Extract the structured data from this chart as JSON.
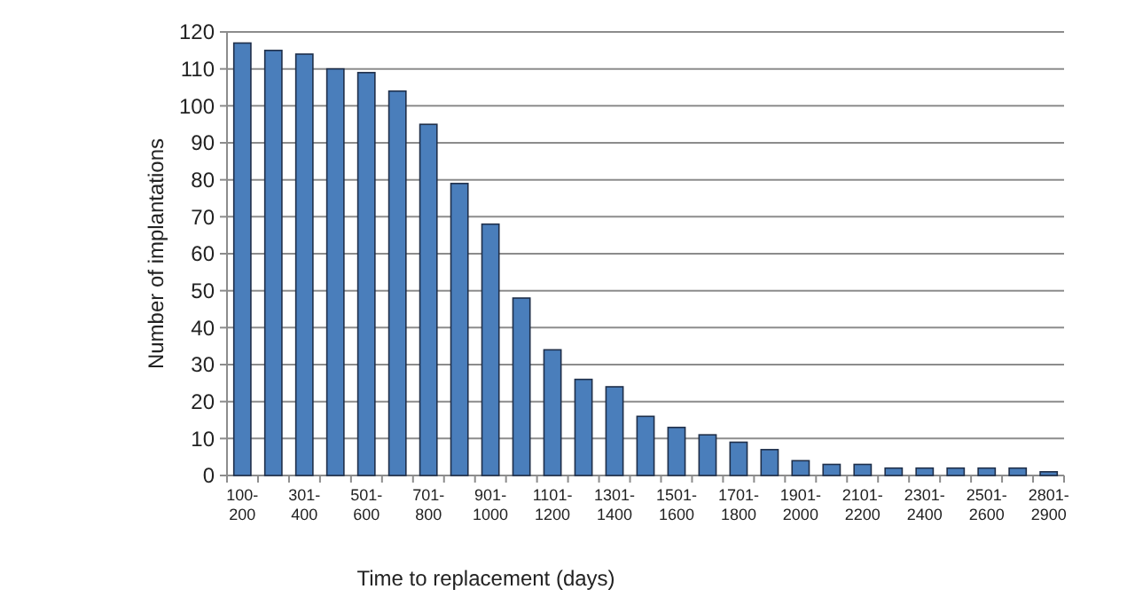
{
  "chart_data": {
    "type": "bar",
    "xlabel": "Time to replacement (days)",
    "ylabel": "Number of implantations",
    "categories": [
      "100-200",
      null,
      "301-400",
      null,
      "501-600",
      null,
      "701-800",
      null,
      "901-1000",
      null,
      "1101-1200",
      null,
      "1301-1400",
      null,
      "1501-1600",
      null,
      "1701-1800",
      null,
      "1901-2000",
      null,
      "2101-2200",
      null,
      "2301-2400",
      null,
      "2501-2600",
      null,
      "2801-2900"
    ],
    "values": [
      117,
      115,
      114,
      110,
      109,
      104,
      95,
      79,
      68,
      48,
      34,
      26,
      24,
      16,
      13,
      11,
      9,
      7,
      4,
      3,
      3,
      2,
      2,
      2,
      2,
      2,
      1
    ],
    "color": "#4a7ebb",
    "ylim": [
      0,
      120
    ],
    "yticks": [
      0,
      10,
      20,
      30,
      40,
      50,
      60,
      70,
      80,
      90,
      100,
      110,
      120
    ],
    "grid": "y"
  }
}
